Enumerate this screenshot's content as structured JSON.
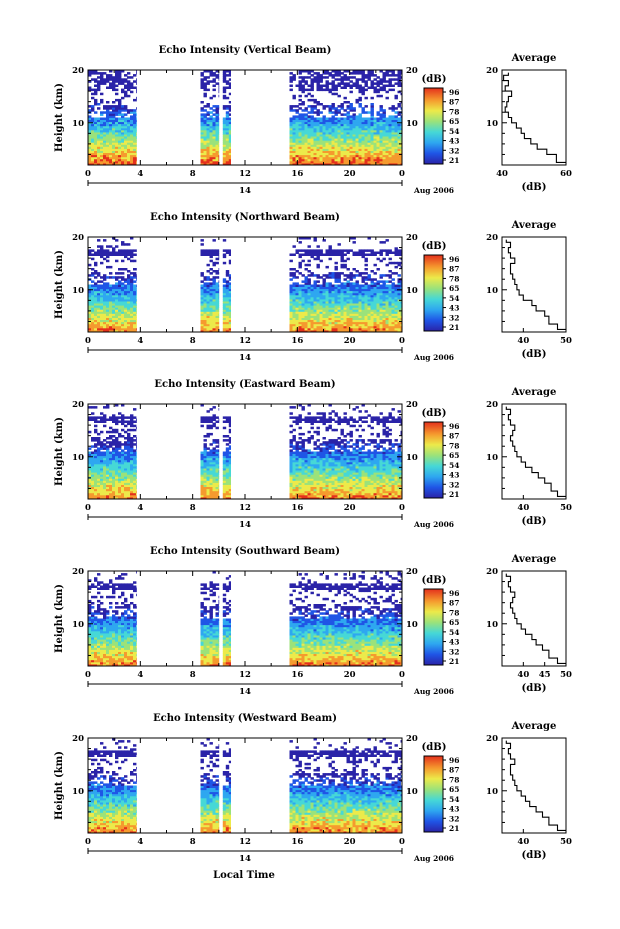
{
  "colorbar": {
    "unit": "(dB)",
    "ticks": [
      "96",
      "87",
      "78",
      "65",
      "54",
      "43",
      "32",
      "21"
    ]
  },
  "timeline": {
    "day_label": "14",
    "date_label": "Aug 2006",
    "xlabel": "Local Time"
  },
  "chart_data": [
    {
      "type": "heatmap",
      "title": "Echo Intensity (Vertical Beam)",
      "xlabel": "Local Time",
      "ylabel": "Height (km)",
      "xlim": [
        0,
        24
      ],
      "ylim": [
        2,
        20
      ],
      "xticks": [
        "0",
        "4",
        "8",
        "12",
        "16",
        "20",
        "0"
      ],
      "yticks": [
        "20",
        "10"
      ],
      "data_segments_hours": [
        [
          0,
          3.7
        ],
        [
          8.6,
          10
        ],
        [
          10.3,
          10.9
        ],
        [
          15.4,
          24
        ]
      ],
      "clim_db": [
        21,
        96
      ],
      "average_profile": {
        "title": "Average",
        "xlabel": "(dB)",
        "xlim": [
          40,
          60
        ],
        "xticks": [
          "40",
          "60"
        ],
        "yticks": [
          "20",
          "10"
        ],
        "height_km": [
          2.5,
          4,
          5,
          6,
          7,
          8,
          9,
          10,
          11,
          12,
          13,
          14,
          15,
          16,
          17,
          18,
          19,
          19.5
        ],
        "db": [
          60,
          57,
          54,
          51,
          49,
          47,
          46,
          44.5,
          43,
          42,
          41,
          41.5,
          42,
          43,
          41,
          42,
          40.5,
          42
        ]
      }
    },
    {
      "type": "heatmap",
      "title": "Echo Intensity (Northward Beam)",
      "xlabel": "Local Time",
      "ylabel": "Height (km)",
      "xlim": [
        0,
        24
      ],
      "ylim": [
        2,
        20
      ],
      "xticks": [
        "0",
        "4",
        "8",
        "12",
        "16",
        "20",
        "0"
      ],
      "yticks": [
        "20",
        "10"
      ],
      "data_segments_hours": [
        [
          0,
          3.7
        ],
        [
          8.6,
          10
        ],
        [
          10.3,
          10.9
        ],
        [
          15.4,
          24
        ]
      ],
      "clim_db": [
        21,
        96
      ],
      "average_profile": {
        "title": "Average",
        "xlabel": "(dB)",
        "xlim": [
          35,
          50
        ],
        "xticks": [
          "40",
          "50"
        ],
        "yticks": [
          "20",
          "10"
        ],
        "height_km": [
          2.5,
          3.5,
          5,
          6,
          7,
          8,
          9,
          10,
          11,
          12,
          13,
          14,
          15,
          16,
          17,
          18,
          19,
          19.5
        ],
        "db": [
          50,
          48,
          46,
          45,
          43,
          42,
          40,
          39,
          38.5,
          38,
          37.5,
          37,
          37,
          38,
          37,
          36.5,
          37,
          36
        ]
      }
    },
    {
      "type": "heatmap",
      "title": "Echo Intensity (Eastward Beam)",
      "xlabel": "Local Time",
      "ylabel": "Height (km)",
      "xlim": [
        0,
        24
      ],
      "ylim": [
        2,
        20
      ],
      "xticks": [
        "0",
        "4",
        "8",
        "12",
        "16",
        "20",
        "0"
      ],
      "yticks": [
        "20",
        "10"
      ],
      "data_segments_hours": [
        [
          0,
          3.7
        ],
        [
          8.6,
          10
        ],
        [
          10.3,
          10.9
        ],
        [
          15.4,
          24
        ]
      ],
      "clim_db": [
        21,
        96
      ],
      "average_profile": {
        "title": "Average",
        "xlabel": "(dB)",
        "xlim": [
          35,
          50
        ],
        "xticks": [
          "40",
          "50"
        ],
        "yticks": [
          "20",
          "10"
        ],
        "height_km": [
          2.5,
          3.5,
          5,
          6,
          7,
          8,
          9,
          10,
          11,
          12,
          13,
          14,
          15,
          16,
          17,
          18,
          19,
          19.5
        ],
        "db": [
          50,
          48,
          46.5,
          45,
          43.5,
          42,
          40.5,
          39.5,
          38.5,
          38,
          37.5,
          37,
          37.5,
          38,
          37,
          36.5,
          37,
          36
        ]
      }
    },
    {
      "type": "heatmap",
      "title": "Echo Intensity (Southward Beam)",
      "xlabel": "Local Time",
      "ylabel": "Height (km)",
      "xlim": [
        0,
        24
      ],
      "ylim": [
        2,
        20
      ],
      "xticks": [
        "0",
        "4",
        "8",
        "12",
        "16",
        "20",
        "0"
      ],
      "yticks": [
        "20",
        "10"
      ],
      "data_segments_hours": [
        [
          0,
          3.7
        ],
        [
          8.6,
          10
        ],
        [
          10.3,
          10.9
        ],
        [
          15.4,
          24
        ]
      ],
      "clim_db": [
        21,
        96
      ],
      "average_profile": {
        "title": "Average",
        "xlabel": "(dB)",
        "xlim": [
          35,
          50
        ],
        "xticks": [
          "40",
          "45",
          "50"
        ],
        "yticks": [
          "20",
          "10"
        ],
        "height_km": [
          2.5,
          3.5,
          5,
          6,
          7,
          8,
          9,
          10,
          11,
          12,
          13,
          14,
          15,
          16,
          17,
          18,
          19,
          19.5
        ],
        "db": [
          50,
          48,
          46,
          44.5,
          43,
          42,
          40.5,
          39.5,
          38.5,
          38,
          37.5,
          37,
          37.5,
          38,
          37,
          36.5,
          37,
          36
        ]
      }
    },
    {
      "type": "heatmap",
      "title": "Echo Intensity (Westward Beam)",
      "xlabel": "Local Time",
      "ylabel": "Height (km)",
      "xlim": [
        0,
        24
      ],
      "ylim": [
        2,
        20
      ],
      "xticks": [
        "0",
        "4",
        "8",
        "12",
        "16",
        "20",
        "0"
      ],
      "yticks": [
        "20",
        "10"
      ],
      "data_segments_hours": [
        [
          0,
          3.7
        ],
        [
          8.6,
          10
        ],
        [
          10.3,
          10.9
        ],
        [
          15.4,
          24
        ]
      ],
      "clim_db": [
        21,
        96
      ],
      "average_profile": {
        "title": "Average",
        "xlabel": "(dB)",
        "xlim": [
          35,
          50
        ],
        "xticks": [
          "40",
          "50"
        ],
        "yticks": [
          "20",
          "10"
        ],
        "height_km": [
          2.5,
          3.5,
          5,
          6,
          7,
          8,
          9,
          10,
          11,
          12,
          13,
          14,
          15,
          16,
          17,
          18,
          19,
          19.5
        ],
        "db": [
          50,
          48,
          46,
          44.5,
          43,
          41.5,
          40.5,
          39.5,
          38.5,
          38,
          37.5,
          37,
          37,
          38,
          37,
          36.5,
          37,
          36
        ]
      }
    }
  ]
}
